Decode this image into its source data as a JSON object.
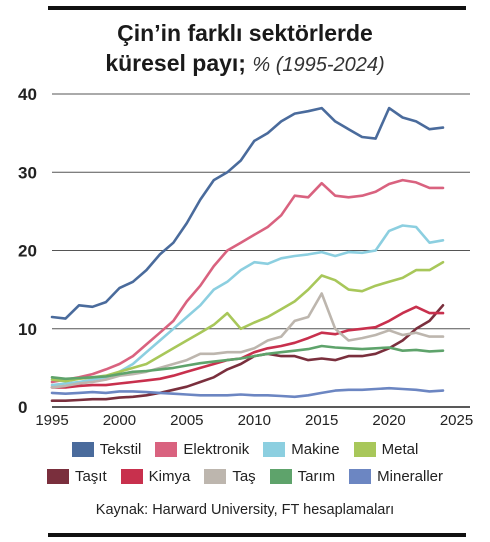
{
  "title": {
    "line1": "Çin’in farklı sektörlerde",
    "line2": "küresel payı;",
    "subtitle": "% (1995-2024)"
  },
  "source": "Kaynak: Harward University, FT hesaplamaları",
  "chart_data": {
    "type": "line",
    "title": "Çin’in farklı sektörlerde küresel payı; % (1995-2024)",
    "xlabel": "",
    "ylabel": "",
    "xlim": [
      1995,
      2026
    ],
    "ylim": [
      0,
      40
    ],
    "yticks": [
      0,
      10,
      20,
      30,
      40
    ],
    "xticks": [
      1995,
      2000,
      2005,
      2010,
      2015,
      2020,
      2025
    ],
    "grid": "horizontal",
    "legend_position": "bottom",
    "series": [
      {
        "name": "Tekstil",
        "color": "#4a6b9c",
        "points": [
          [
            1995,
            11.5
          ],
          [
            1996,
            11.3
          ],
          [
            1997,
            13.0
          ],
          [
            1998,
            12.8
          ],
          [
            1999,
            13.4
          ],
          [
            2000,
            15.2
          ],
          [
            2001,
            16.0
          ],
          [
            2002,
            17.5
          ],
          [
            2003,
            19.5
          ],
          [
            2004,
            21.0
          ],
          [
            2005,
            23.5
          ],
          [
            2006,
            26.5
          ],
          [
            2007,
            29.0
          ],
          [
            2008,
            30.0
          ],
          [
            2009,
            31.5
          ],
          [
            2010,
            34.0
          ],
          [
            2011,
            35.0
          ],
          [
            2012,
            36.5
          ],
          [
            2013,
            37.5
          ],
          [
            2014,
            37.8
          ],
          [
            2015,
            38.2
          ],
          [
            2016,
            36.5
          ],
          [
            2017,
            35.5
          ],
          [
            2018,
            34.5
          ],
          [
            2019,
            34.3
          ],
          [
            2020,
            38.2
          ],
          [
            2021,
            37.0
          ],
          [
            2022,
            36.5
          ],
          [
            2023,
            35.5
          ],
          [
            2024,
            35.7
          ]
        ]
      },
      {
        "name": "Elektronik",
        "color": "#d9627f",
        "points": [
          [
            1995,
            3.2
          ],
          [
            1996,
            3.5
          ],
          [
            1997,
            3.8
          ],
          [
            1998,
            4.2
          ],
          [
            1999,
            4.8
          ],
          [
            2000,
            5.5
          ],
          [
            2001,
            6.5
          ],
          [
            2002,
            8.0
          ],
          [
            2003,
            9.5
          ],
          [
            2004,
            11.0
          ],
          [
            2005,
            13.5
          ],
          [
            2006,
            15.5
          ],
          [
            2007,
            18.0
          ],
          [
            2008,
            20.0
          ],
          [
            2009,
            21.0
          ],
          [
            2010,
            22.0
          ],
          [
            2011,
            23.0
          ],
          [
            2012,
            24.5
          ],
          [
            2013,
            27.0
          ],
          [
            2014,
            26.8
          ],
          [
            2015,
            28.6
          ],
          [
            2016,
            27.0
          ],
          [
            2017,
            26.8
          ],
          [
            2018,
            27.0
          ],
          [
            2019,
            27.5
          ],
          [
            2020,
            28.5
          ],
          [
            2021,
            29.0
          ],
          [
            2022,
            28.7
          ],
          [
            2023,
            28.0
          ],
          [
            2024,
            28.0
          ]
        ]
      },
      {
        "name": "Makine",
        "color": "#8ccfe0",
        "points": [
          [
            1995,
            2.8
          ],
          [
            1996,
            3.0
          ],
          [
            1997,
            3.2
          ],
          [
            1998,
            3.5
          ],
          [
            1999,
            3.8
          ],
          [
            2000,
            4.5
          ],
          [
            2001,
            5.5
          ],
          [
            2002,
            7.0
          ],
          [
            2003,
            8.5
          ],
          [
            2004,
            10.0
          ],
          [
            2005,
            11.5
          ],
          [
            2006,
            13.0
          ],
          [
            2007,
            15.0
          ],
          [
            2008,
            16.0
          ],
          [
            2009,
            17.5
          ],
          [
            2010,
            18.5
          ],
          [
            2011,
            18.3
          ],
          [
            2012,
            19.0
          ],
          [
            2013,
            19.3
          ],
          [
            2014,
            19.5
          ],
          [
            2015,
            19.8
          ],
          [
            2016,
            19.3
          ],
          [
            2017,
            19.8
          ],
          [
            2018,
            19.7
          ],
          [
            2019,
            20.0
          ],
          [
            2020,
            22.5
          ],
          [
            2021,
            23.2
          ],
          [
            2022,
            23.0
          ],
          [
            2023,
            21.0
          ],
          [
            2024,
            21.3
          ]
        ]
      },
      {
        "name": "Metal",
        "color": "#a8c75a",
        "points": [
          [
            1995,
            3.5
          ],
          [
            1996,
            3.3
          ],
          [
            1997,
            3.6
          ],
          [
            1998,
            3.8
          ],
          [
            1999,
            4.0
          ],
          [
            2000,
            4.5
          ],
          [
            2001,
            5.0
          ],
          [
            2002,
            5.5
          ],
          [
            2003,
            6.5
          ],
          [
            2004,
            7.5
          ],
          [
            2005,
            8.5
          ],
          [
            2006,
            9.5
          ],
          [
            2007,
            10.5
          ],
          [
            2008,
            12.0
          ],
          [
            2009,
            10.0
          ],
          [
            2010,
            10.8
          ],
          [
            2011,
            11.5
          ],
          [
            2012,
            12.5
          ],
          [
            2013,
            13.5
          ],
          [
            2014,
            15.0
          ],
          [
            2015,
            16.8
          ],
          [
            2016,
            16.2
          ],
          [
            2017,
            15.0
          ],
          [
            2018,
            14.8
          ],
          [
            2019,
            15.5
          ],
          [
            2020,
            16.0
          ],
          [
            2021,
            16.5
          ],
          [
            2022,
            17.5
          ],
          [
            2023,
            17.5
          ],
          [
            2024,
            18.5
          ]
        ]
      },
      {
        "name": "Taşıt",
        "color": "#7a2f3d",
        "points": [
          [
            1995,
            0.8
          ],
          [
            1996,
            0.8
          ],
          [
            1997,
            0.9
          ],
          [
            1998,
            1.0
          ],
          [
            1999,
            1.0
          ],
          [
            2000,
            1.2
          ],
          [
            2001,
            1.3
          ],
          [
            2002,
            1.5
          ],
          [
            2003,
            1.8
          ],
          [
            2004,
            2.2
          ],
          [
            2005,
            2.6
          ],
          [
            2006,
            3.2
          ],
          [
            2007,
            3.8
          ],
          [
            2008,
            4.8
          ],
          [
            2009,
            5.5
          ],
          [
            2010,
            6.5
          ],
          [
            2011,
            6.8
          ],
          [
            2012,
            6.5
          ],
          [
            2013,
            6.5
          ],
          [
            2014,
            6.0
          ],
          [
            2015,
            6.2
          ],
          [
            2016,
            6.0
          ],
          [
            2017,
            6.5
          ],
          [
            2018,
            6.5
          ],
          [
            2019,
            6.8
          ],
          [
            2020,
            7.5
          ],
          [
            2021,
            8.5
          ],
          [
            2022,
            10.0
          ],
          [
            2023,
            11.0
          ],
          [
            2024,
            13.0
          ]
        ]
      },
      {
        "name": "Kimya",
        "color": "#c8304d",
        "points": [
          [
            1995,
            2.5
          ],
          [
            1996,
            2.5
          ],
          [
            1997,
            2.7
          ],
          [
            1998,
            2.8
          ],
          [
            1999,
            2.8
          ],
          [
            2000,
            3.0
          ],
          [
            2001,
            3.2
          ],
          [
            2002,
            3.4
          ],
          [
            2003,
            3.6
          ],
          [
            2004,
            4.0
          ],
          [
            2005,
            4.5
          ],
          [
            2006,
            5.0
          ],
          [
            2007,
            5.5
          ],
          [
            2008,
            6.0
          ],
          [
            2009,
            6.2
          ],
          [
            2010,
            7.0
          ],
          [
            2011,
            7.5
          ],
          [
            2012,
            7.8
          ],
          [
            2013,
            8.2
          ],
          [
            2014,
            8.8
          ],
          [
            2015,
            9.5
          ],
          [
            2016,
            9.3
          ],
          [
            2017,
            9.8
          ],
          [
            2018,
            10.0
          ],
          [
            2019,
            10.2
          ],
          [
            2020,
            11.0
          ],
          [
            2021,
            12.0
          ],
          [
            2022,
            12.8
          ],
          [
            2023,
            12.0
          ],
          [
            2024,
            12.0
          ]
        ]
      },
      {
        "name": "Taş",
        "color": "#bdb6ae",
        "points": [
          [
            1995,
            2.5
          ],
          [
            1996,
            2.7
          ],
          [
            1997,
            3.0
          ],
          [
            1998,
            3.2
          ],
          [
            1999,
            3.5
          ],
          [
            2000,
            4.0
          ],
          [
            2001,
            4.2
          ],
          [
            2002,
            4.5
          ],
          [
            2003,
            5.0
          ],
          [
            2004,
            5.5
          ],
          [
            2005,
            6.0
          ],
          [
            2006,
            6.8
          ],
          [
            2007,
            6.8
          ],
          [
            2008,
            7.0
          ],
          [
            2009,
            7.0
          ],
          [
            2010,
            7.5
          ],
          [
            2011,
            8.5
          ],
          [
            2012,
            9.0
          ],
          [
            2013,
            11.0
          ],
          [
            2014,
            11.5
          ],
          [
            2015,
            14.5
          ],
          [
            2016,
            10.0
          ],
          [
            2017,
            8.5
          ],
          [
            2018,
            8.8
          ],
          [
            2019,
            9.2
          ],
          [
            2020,
            9.8
          ],
          [
            2021,
            9.2
          ],
          [
            2022,
            9.5
          ],
          [
            2023,
            9.0
          ],
          [
            2024,
            9.0
          ]
        ]
      },
      {
        "name": "Tarım",
        "color": "#5ea36b",
        "points": [
          [
            1995,
            3.8
          ],
          [
            1996,
            3.6
          ],
          [
            1997,
            3.7
          ],
          [
            1998,
            3.8
          ],
          [
            1999,
            3.9
          ],
          [
            2000,
            4.2
          ],
          [
            2001,
            4.5
          ],
          [
            2002,
            4.6
          ],
          [
            2003,
            4.8
          ],
          [
            2004,
            5.0
          ],
          [
            2005,
            5.3
          ],
          [
            2006,
            5.6
          ],
          [
            2007,
            5.8
          ],
          [
            2008,
            6.0
          ],
          [
            2009,
            6.2
          ],
          [
            2010,
            6.5
          ],
          [
            2011,
            6.8
          ],
          [
            2012,
            7.0
          ],
          [
            2013,
            7.2
          ],
          [
            2014,
            7.4
          ],
          [
            2015,
            7.8
          ],
          [
            2016,
            7.6
          ],
          [
            2017,
            7.5
          ],
          [
            2018,
            7.4
          ],
          [
            2019,
            7.5
          ],
          [
            2020,
            7.6
          ],
          [
            2021,
            7.2
          ],
          [
            2022,
            7.3
          ],
          [
            2023,
            7.1
          ],
          [
            2024,
            7.2
          ]
        ]
      },
      {
        "name": "Mineraller",
        "color": "#6c86c2",
        "points": [
          [
            1995,
            1.8
          ],
          [
            1996,
            1.7
          ],
          [
            1997,
            1.8
          ],
          [
            1998,
            1.9
          ],
          [
            1999,
            1.8
          ],
          [
            2000,
            2.0
          ],
          [
            2001,
            2.0
          ],
          [
            2002,
            1.9
          ],
          [
            2003,
            1.8
          ],
          [
            2004,
            1.7
          ],
          [
            2005,
            1.6
          ],
          [
            2006,
            1.5
          ],
          [
            2007,
            1.5
          ],
          [
            2008,
            1.5
          ],
          [
            2009,
            1.6
          ],
          [
            2010,
            1.5
          ],
          [
            2011,
            1.5
          ],
          [
            2012,
            1.4
          ],
          [
            2013,
            1.3
          ],
          [
            2014,
            1.5
          ],
          [
            2015,
            1.8
          ],
          [
            2016,
            2.1
          ],
          [
            2017,
            2.2
          ],
          [
            2018,
            2.2
          ],
          [
            2019,
            2.3
          ],
          [
            2020,
            2.4
          ],
          [
            2021,
            2.3
          ],
          [
            2022,
            2.2
          ],
          [
            2023,
            2.0
          ],
          [
            2024,
            2.1
          ]
        ]
      }
    ]
  }
}
